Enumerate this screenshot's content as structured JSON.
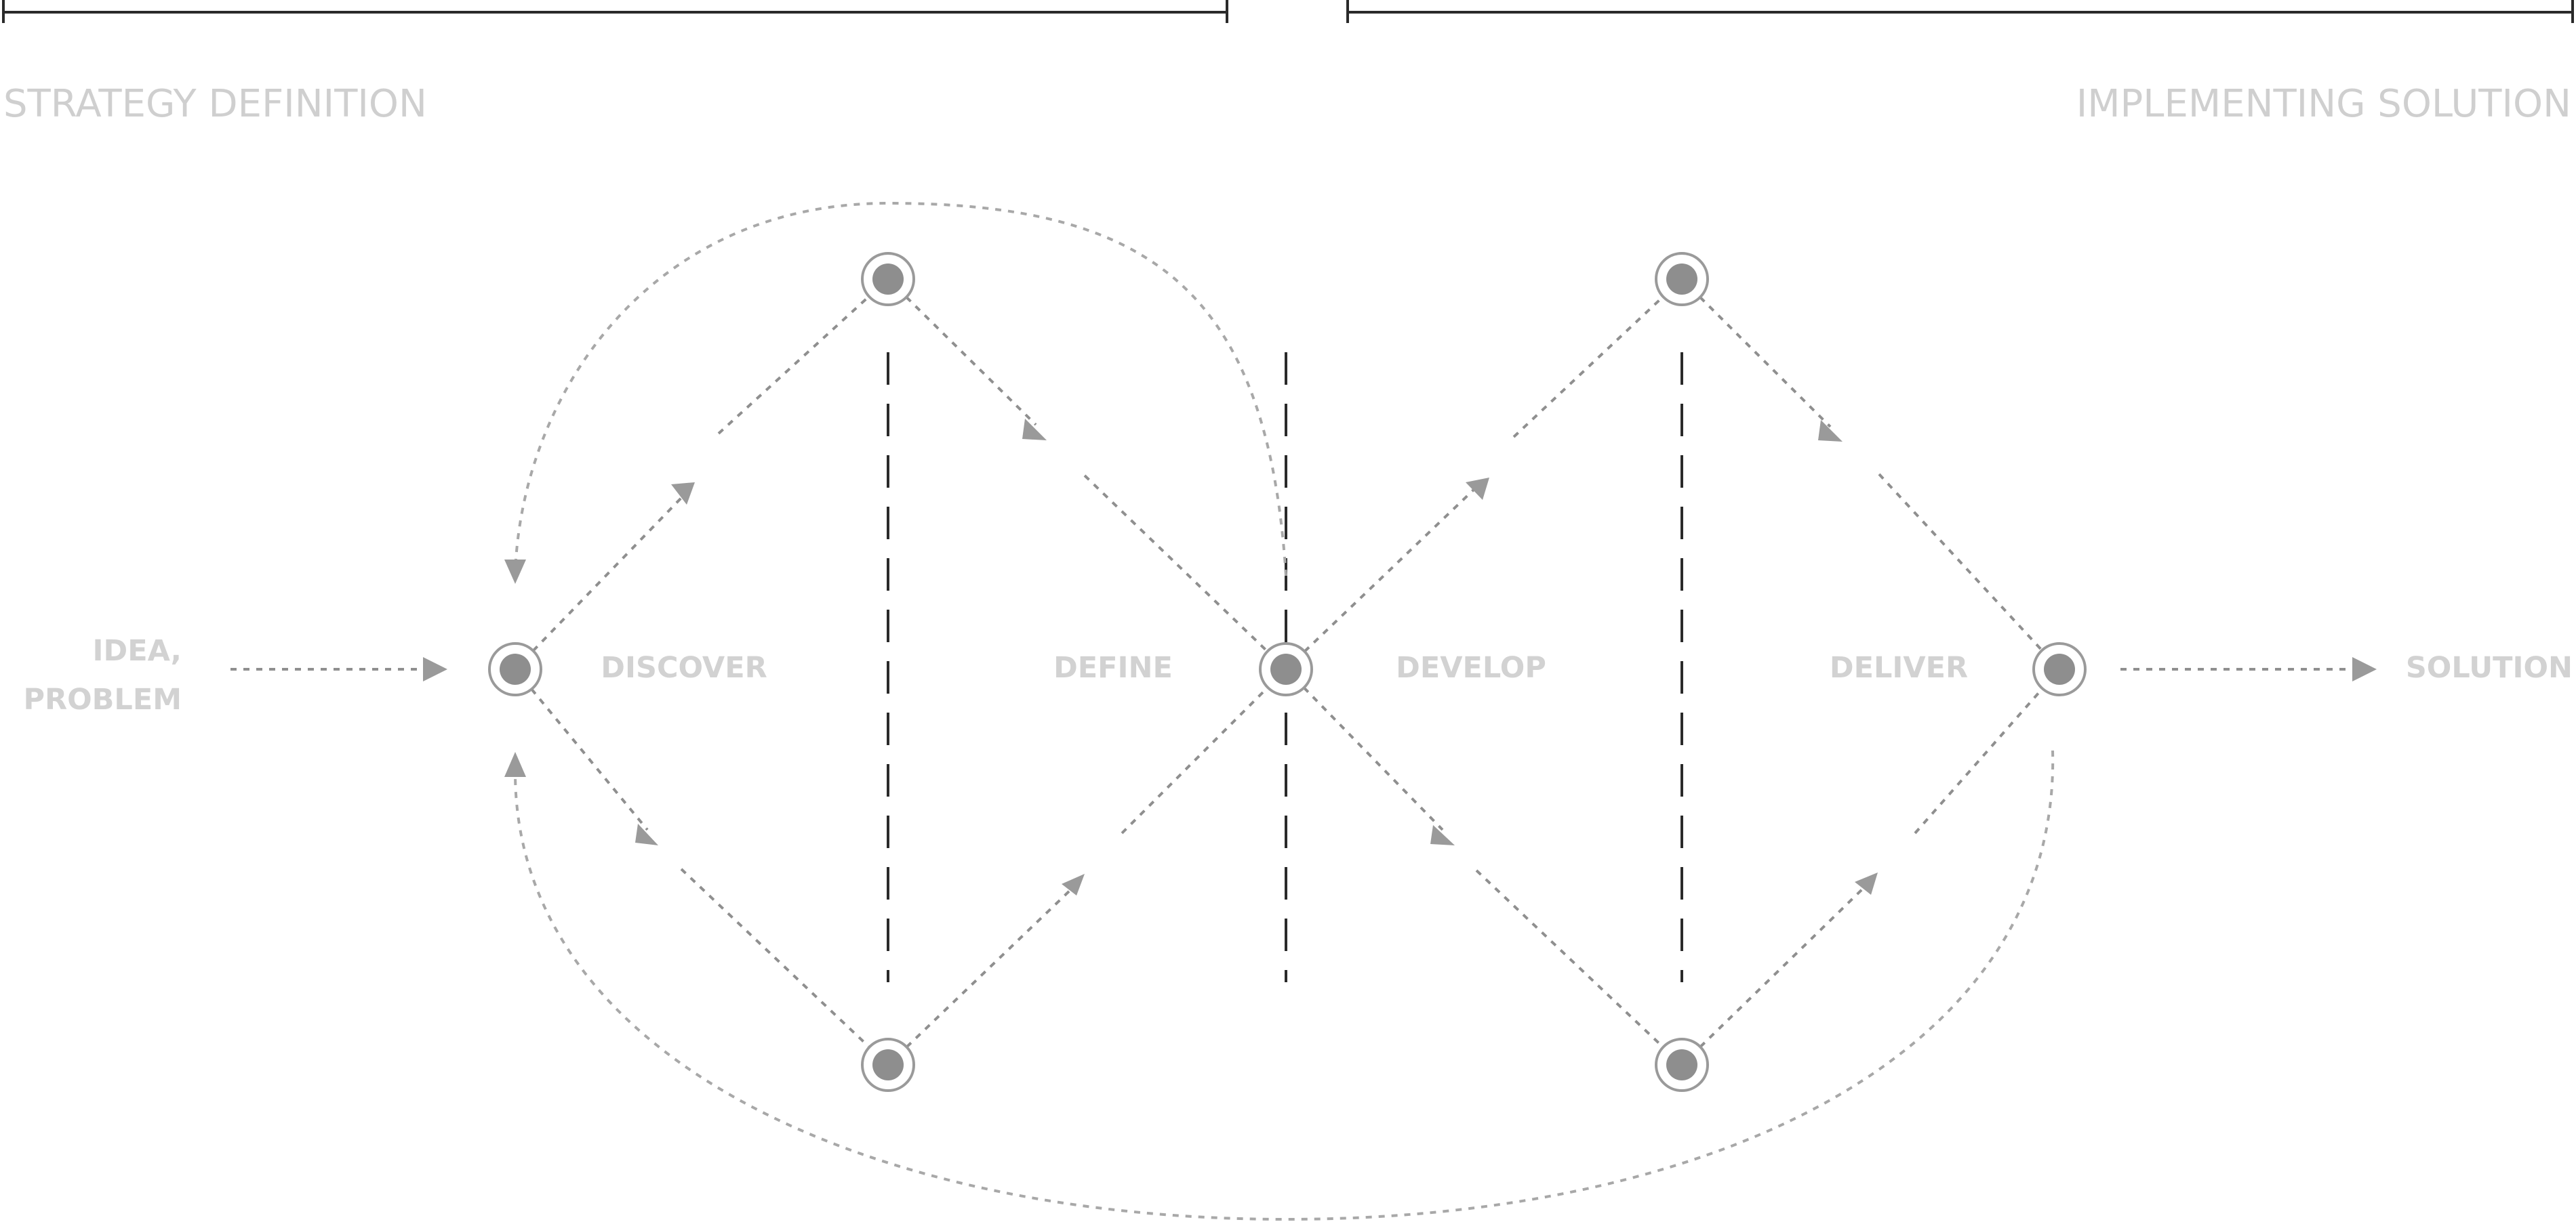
{
  "sections": {
    "left": "STRATEGY DEFINITION",
    "right": "IMPLEMENTING SOLUTION"
  },
  "input": {
    "line1": "IDEA,",
    "line2": "PROBLEM"
  },
  "phases": {
    "discover": "DISCOVER",
    "define": "DEFINE",
    "develop": "DEVELOP",
    "deliver": "DELIVER"
  },
  "output": "SOLUTION",
  "colors": {
    "label": "#cfcfcf",
    "line": "#8f8f8f",
    "node": "#8e8e8e",
    "bracket": "#2a2a2a"
  }
}
